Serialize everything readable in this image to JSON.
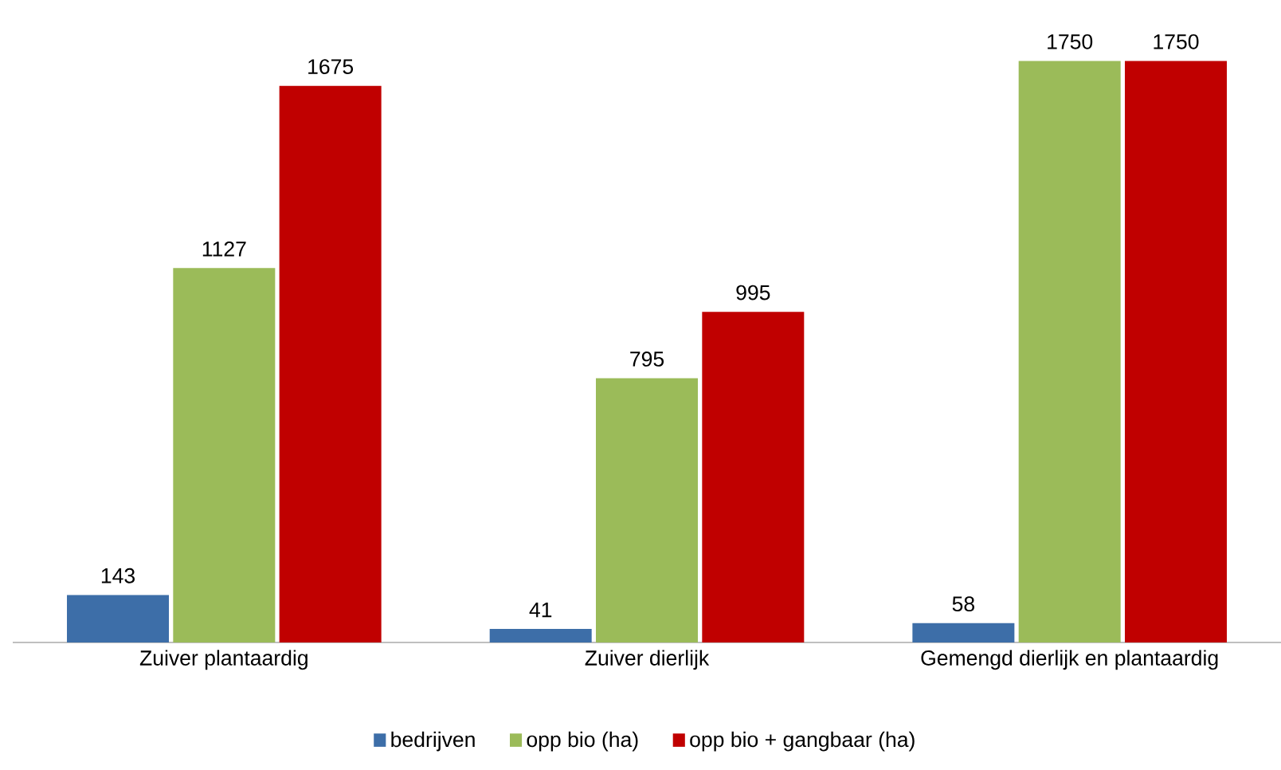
{
  "chart_data": {
    "type": "bar",
    "categories": [
      "Zuiver plantaardig",
      "Zuiver dierlijk",
      "Gemengd dierlijk en plantaardig"
    ],
    "series": [
      {
        "name": "bedrijven",
        "color": "#3d6ea8",
        "values": [
          143,
          41,
          58
        ]
      },
      {
        "name": "opp bio (ha)",
        "color": "#9bbb59",
        "values": [
          1127,
          795,
          1750
        ]
      },
      {
        "name": "opp bio + gangbaar (ha)",
        "color": "#c00000",
        "values": [
          1675,
          995,
          1750
        ]
      }
    ],
    "data_labels": true,
    "legend": "bottom"
  }
}
